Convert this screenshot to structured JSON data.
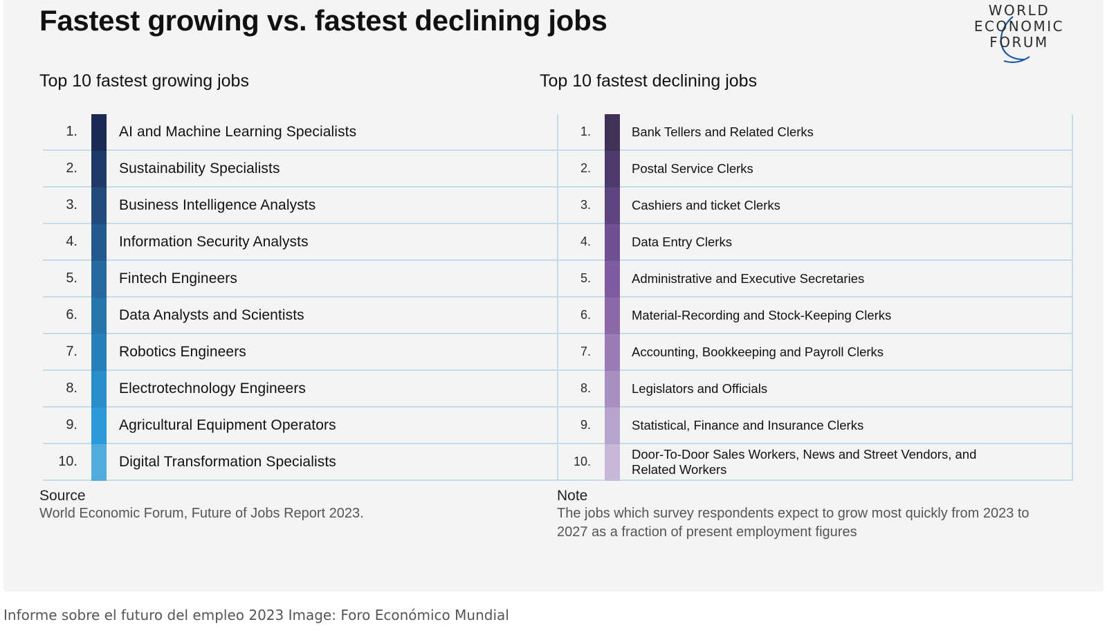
{
  "title": "Fastest growing vs. fastest declining jobs",
  "logo": {
    "lines": [
      "WORLD",
      "ECONOMIC",
      "FORUM"
    ],
    "color": "#1f5aa6"
  },
  "growing": {
    "heading": "Top 10 fastest growing jobs",
    "items": [
      {
        "rank": "1.",
        "job": "AI and Machine Learning Specialists",
        "color": "#1b2a52"
      },
      {
        "rank": "2.",
        "job": "Sustainability Specialists",
        "color": "#1f3a66"
      },
      {
        "rank": "3.",
        "job": "Business Intelligence Analysts",
        "color": "#224a7a"
      },
      {
        "rank": "4.",
        "job": "Information Security Analysts",
        "color": "#245a8e"
      },
      {
        "rank": "5.",
        "job": "Fintech Engineers",
        "color": "#26699e"
      },
      {
        "rank": "6.",
        "job": "Data Analysts and Scientists",
        "color": "#2775aa"
      },
      {
        "rank": "7.",
        "job": "Robotics Engineers",
        "color": "#2880b8"
      },
      {
        "rank": "8.",
        "job": "Electrotechnology Engineers",
        "color": "#298dc9"
      },
      {
        "rank": "9.",
        "job": "Agricultural Equipment Operators",
        "color": "#2c9ad8"
      },
      {
        "rank": "10.",
        "job": "Digital Transformation Specialists",
        "color": "#52acdb"
      }
    ]
  },
  "declining": {
    "heading": "Top 10 fastest declining jobs",
    "items": [
      {
        "rank": "1.",
        "job": "Bank Tellers and Related Clerks",
        "color": "#3f3256"
      },
      {
        "rank": "2.",
        "job": "Postal Service Clerks",
        "color": "#4e3b6b"
      },
      {
        "rank": "3.",
        "job": "Cashiers and ticket Clerks",
        "color": "#5e4580"
      },
      {
        "rank": "4.",
        "job": "Data Entry Clerks",
        "color": "#6f5092"
      },
      {
        "rank": "5.",
        "job": "Administrative and Executive Secretaries",
        "color": "#7f5ca2"
      },
      {
        "rank": "6.",
        "job": "Material-Recording and Stock-Keeping Clerks",
        "color": "#8c6aaa"
      },
      {
        "rank": "7.",
        "job": "Accounting, Bookkeeping and Payroll Clerks",
        "color": "#9a7db5"
      },
      {
        "rank": "8.",
        "job": "Legislators and Officials",
        "color": "#a890c0"
      },
      {
        "rank": "9.",
        "job": "Statistical, Finance and Insurance Clerks",
        "color": "#b7a4cc"
      },
      {
        "rank": "10.",
        "job": "Door-To-Door Sales Workers, News and Street Vendors, and Related Workers",
        "color": "#c8b8d8"
      }
    ]
  },
  "source": {
    "label": "Source",
    "text": "World Economic Forum, Future of Jobs Report 2023."
  },
  "note": {
    "label": "Note",
    "text": "The jobs which survey respondents expect to grow most quickly from 2023 to 2027 as a fraction of present employment figures"
  },
  "caption": "Informe sobre el futuro del empleo 2023 Image: Foro Económico Mundial"
}
